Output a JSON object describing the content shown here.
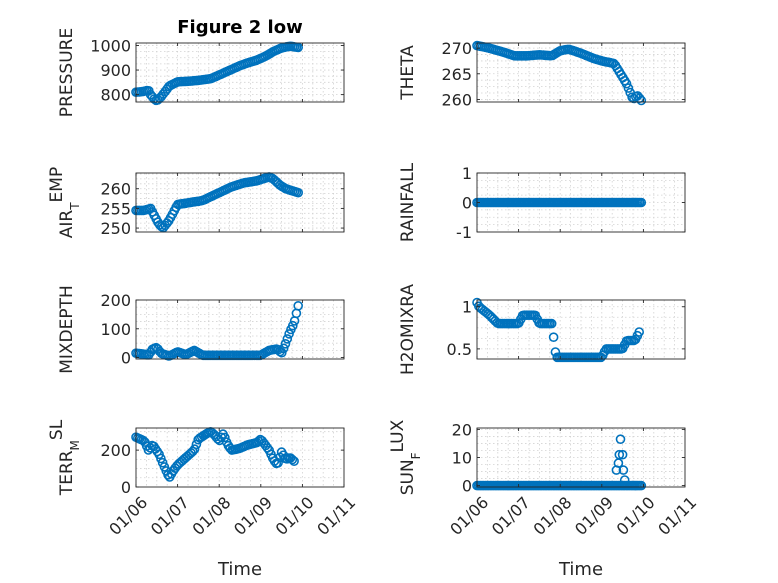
{
  "chart_data": [
    {
      "type": "scatter",
      "title": "Figure 2 low",
      "ylabel": "PRESSURE",
      "ylabel_sub": "",
      "ylim": [
        770,
        1010
      ],
      "yticks": [
        800,
        900,
        1000
      ],
      "ytick_labels": [
        "800",
        "900",
        "1000"
      ],
      "xlim": [
        0,
        5
      ],
      "xticks": [
        0,
        1,
        2,
        3,
        4,
        5
      ],
      "xtick_labels": [],
      "xlabel": "",
      "keyframes": [
        [
          0.0,
          810
        ],
        [
          0.15,
          812
        ],
        [
          0.3,
          818
        ],
        [
          0.35,
          800
        ],
        [
          0.45,
          780
        ],
        [
          0.5,
          775
        ],
        [
          0.6,
          790
        ],
        [
          0.8,
          835
        ],
        [
          1.0,
          852
        ],
        [
          1.3,
          855
        ],
        [
          1.5,
          858
        ],
        [
          1.8,
          865
        ],
        [
          2.0,
          880
        ],
        [
          2.2,
          895
        ],
        [
          2.5,
          918
        ],
        [
          2.7,
          930
        ],
        [
          2.9,
          940
        ],
        [
          3.1,
          955
        ],
        [
          3.3,
          975
        ],
        [
          3.5,
          990
        ],
        [
          3.7,
          997
        ],
        [
          3.9,
          992
        ]
      ],
      "x_end": 3.9,
      "n_points": 90
    },
    {
      "type": "scatter",
      "title": "",
      "ylabel": "THETA",
      "ylabel_sub": "",
      "ylim": [
        259.5,
        271
      ],
      "yticks": [
        260,
        265,
        270
      ],
      "ytick_labels": [
        "260",
        "265",
        "270"
      ],
      "xlim": [
        0,
        5
      ],
      "xticks": [
        0,
        1,
        2,
        3,
        4,
        5
      ],
      "xtick_labels": [],
      "xlabel": "",
      "keyframes": [
        [
          0.0,
          270.5
        ],
        [
          0.3,
          270
        ],
        [
          0.6,
          269.3
        ],
        [
          0.9,
          268.5
        ],
        [
          1.2,
          268.5
        ],
        [
          1.5,
          268.7
        ],
        [
          1.8,
          268.5
        ],
        [
          2.0,
          269.5
        ],
        [
          2.2,
          269.8
        ],
        [
          2.5,
          269
        ],
        [
          2.8,
          268
        ],
        [
          3.0,
          267.5
        ],
        [
          3.3,
          267
        ],
        [
          3.45,
          265
        ],
        [
          3.6,
          263
        ],
        [
          3.75,
          260
        ],
        [
          3.85,
          260.8
        ],
        [
          3.95,
          259.8
        ]
      ],
      "x_end": 3.95,
      "n_points": 90
    },
    {
      "type": "scatter",
      "title": "",
      "ylabel": "AIR",
      "ylabel_sub": "T",
      "ylabel_suffix": "EMP",
      "ylim": [
        249,
        264
      ],
      "yticks": [
        250,
        255,
        260
      ],
      "ytick_labels": [
        "250",
        "255",
        "260"
      ],
      "xlim": [
        0,
        5
      ],
      "xticks": [
        0,
        1,
        2,
        3,
        4,
        5
      ],
      "xtick_labels": [],
      "xlabel": "",
      "keyframes": [
        [
          0.0,
          254.5
        ],
        [
          0.2,
          254.5
        ],
        [
          0.35,
          255
        ],
        [
          0.45,
          253
        ],
        [
          0.55,
          251
        ],
        [
          0.65,
          250
        ],
        [
          0.8,
          252
        ],
        [
          1.0,
          256
        ],
        [
          1.3,
          256.5
        ],
        [
          1.6,
          257
        ],
        [
          2.0,
          259
        ],
        [
          2.3,
          260.5
        ],
        [
          2.6,
          261.5
        ],
        [
          2.9,
          262
        ],
        [
          3.2,
          263
        ],
        [
          3.3,
          262.5
        ],
        [
          3.45,
          261
        ],
        [
          3.6,
          260
        ],
        [
          3.75,
          259.5
        ],
        [
          3.9,
          259
        ]
      ],
      "x_end": 3.9,
      "n_points": 90
    },
    {
      "type": "scatter",
      "title": "",
      "ylabel": "RAINFALL",
      "ylabel_sub": "",
      "ylim": [
        -1,
        1
      ],
      "yticks": [
        -1,
        0,
        1
      ],
      "ytick_labels": [
        "-1",
        "0",
        "1"
      ],
      "xlim": [
        0,
        5
      ],
      "xticks": [
        0,
        1,
        2,
        3,
        4,
        5
      ],
      "xtick_labels": [],
      "xlabel": "",
      "keyframes": [
        [
          0.0,
          0
        ],
        [
          3.95,
          0
        ]
      ],
      "x_end": 3.95,
      "n_points": 100
    },
    {
      "type": "scatter",
      "title": "",
      "ylabel": "MIXDEPTH",
      "ylabel_sub": "",
      "ylim": [
        -5,
        200
      ],
      "yticks": [
        0,
        100,
        200
      ],
      "ytick_labels": [
        "0",
        "100",
        "200"
      ],
      "xlim": [
        0,
        5
      ],
      "xticks": [
        0,
        1,
        2,
        3,
        4,
        5
      ],
      "xtick_labels": [],
      "xlabel": "",
      "keyframes": [
        [
          0.0,
          15
        ],
        [
          0.2,
          12
        ],
        [
          0.3,
          8
        ],
        [
          0.4,
          30
        ],
        [
          0.5,
          35
        ],
        [
          0.6,
          15
        ],
        [
          0.8,
          5
        ],
        [
          1.0,
          20
        ],
        [
          1.2,
          10
        ],
        [
          1.4,
          25
        ],
        [
          1.6,
          8
        ],
        [
          2.0,
          8
        ],
        [
          2.5,
          8
        ],
        [
          3.0,
          8
        ],
        [
          3.2,
          25
        ],
        [
          3.4,
          30
        ],
        [
          3.5,
          15
        ],
        [
          3.6,
          50
        ],
        [
          3.7,
          90
        ],
        [
          3.8,
          120
        ],
        [
          3.9,
          180
        ]
      ],
      "x_end": 3.9,
      "n_points": 90
    },
    {
      "type": "scatter",
      "title": "",
      "ylabel": "H2OMIXRA",
      "ylabel_sub": "",
      "ylim": [
        0.38,
        1.08
      ],
      "yticks": [
        0.5,
        1
      ],
      "ytick_labels": [
        "0.5",
        "1"
      ],
      "xlim": [
        0,
        5
      ],
      "xticks": [
        0,
        1,
        2,
        3,
        4,
        5
      ],
      "xtick_labels": [],
      "xlabel": "",
      "keyframes": [
        [
          0.0,
          1.05
        ],
        [
          0.05,
          1.0
        ],
        [
          0.3,
          0.9
        ],
        [
          0.5,
          0.8
        ],
        [
          1.0,
          0.8
        ],
        [
          1.1,
          0.9
        ],
        [
          1.4,
          0.9
        ],
        [
          1.5,
          0.8
        ],
        [
          1.8,
          0.8
        ],
        [
          1.85,
          0.6
        ],
        [
          1.9,
          0.4
        ],
        [
          2.5,
          0.4
        ],
        [
          3.0,
          0.4
        ],
        [
          3.1,
          0.5
        ],
        [
          3.5,
          0.5
        ],
        [
          3.6,
          0.6
        ],
        [
          3.8,
          0.6
        ],
        [
          3.9,
          0.7
        ]
      ],
      "x_end": 3.9,
      "n_points": 90
    },
    {
      "type": "scatter",
      "title": "",
      "ylabel": "TERR",
      "ylabel_sub": "M",
      "ylabel_suffix": "SL",
      "ylim": [
        0,
        320
      ],
      "yticks": [
        0,
        200
      ],
      "ytick_labels": [
        "0",
        "200"
      ],
      "xlim": [
        0,
        5
      ],
      "xticks": [
        0,
        1,
        2,
        3,
        4,
        5
      ],
      "xtick_labels": [
        "01/06",
        "01/07",
        "01/08",
        "01/09",
        "01/10",
        "01/11"
      ],
      "xlabel": "Time",
      "keyframes": [
        [
          0.0,
          270
        ],
        [
          0.2,
          250
        ],
        [
          0.3,
          200
        ],
        [
          0.4,
          230
        ],
        [
          0.55,
          180
        ],
        [
          0.7,
          100
        ],
        [
          0.8,
          50
        ],
        [
          0.9,
          90
        ],
        [
          1.0,
          120
        ],
        [
          1.2,
          160
        ],
        [
          1.4,
          200
        ],
        [
          1.5,
          260
        ],
        [
          1.7,
          290
        ],
        [
          1.8,
          300
        ],
        [
          1.9,
          280
        ],
        [
          2.0,
          250
        ],
        [
          2.1,
          290
        ],
        [
          2.2,
          230
        ],
        [
          2.3,
          200
        ],
        [
          2.5,
          210
        ],
        [
          2.7,
          230
        ],
        [
          2.9,
          240
        ],
        [
          3.0,
          260
        ],
        [
          3.1,
          230
        ],
        [
          3.2,
          200
        ],
        [
          3.3,
          150
        ],
        [
          3.4,
          120
        ],
        [
          3.5,
          190
        ],
        [
          3.6,
          150
        ],
        [
          3.7,
          160
        ],
        [
          3.8,
          140
        ]
      ],
      "x_end": 3.8,
      "n_points": 90
    },
    {
      "type": "scatter",
      "title": "",
      "ylabel": "SUN",
      "ylabel_sub": "F",
      "ylabel_suffix": "LUX",
      "ylim": [
        -0.5,
        20.5
      ],
      "yticks": [
        0,
        10,
        20
      ],
      "ytick_labels": [
        "0",
        "10",
        "20"
      ],
      "xlim": [
        0,
        5
      ],
      "xticks": [
        0,
        1,
        2,
        3,
        4,
        5
      ],
      "xtick_labels": [
        "01/06",
        "01/07",
        "01/08",
        "01/09",
        "01/10",
        "01/11"
      ],
      "xlabel": "Time",
      "keyframes": [
        [
          0.0,
          0
        ],
        [
          3.95,
          0
        ]
      ],
      "x_end": 3.95,
      "n_points": 100,
      "extra_points": [
        [
          3.35,
          5.5
        ],
        [
          3.4,
          8
        ],
        [
          3.42,
          11
        ],
        [
          3.45,
          16.5
        ],
        [
          3.5,
          11
        ],
        [
          3.52,
          5.5
        ],
        [
          3.55,
          2
        ]
      ]
    }
  ]
}
